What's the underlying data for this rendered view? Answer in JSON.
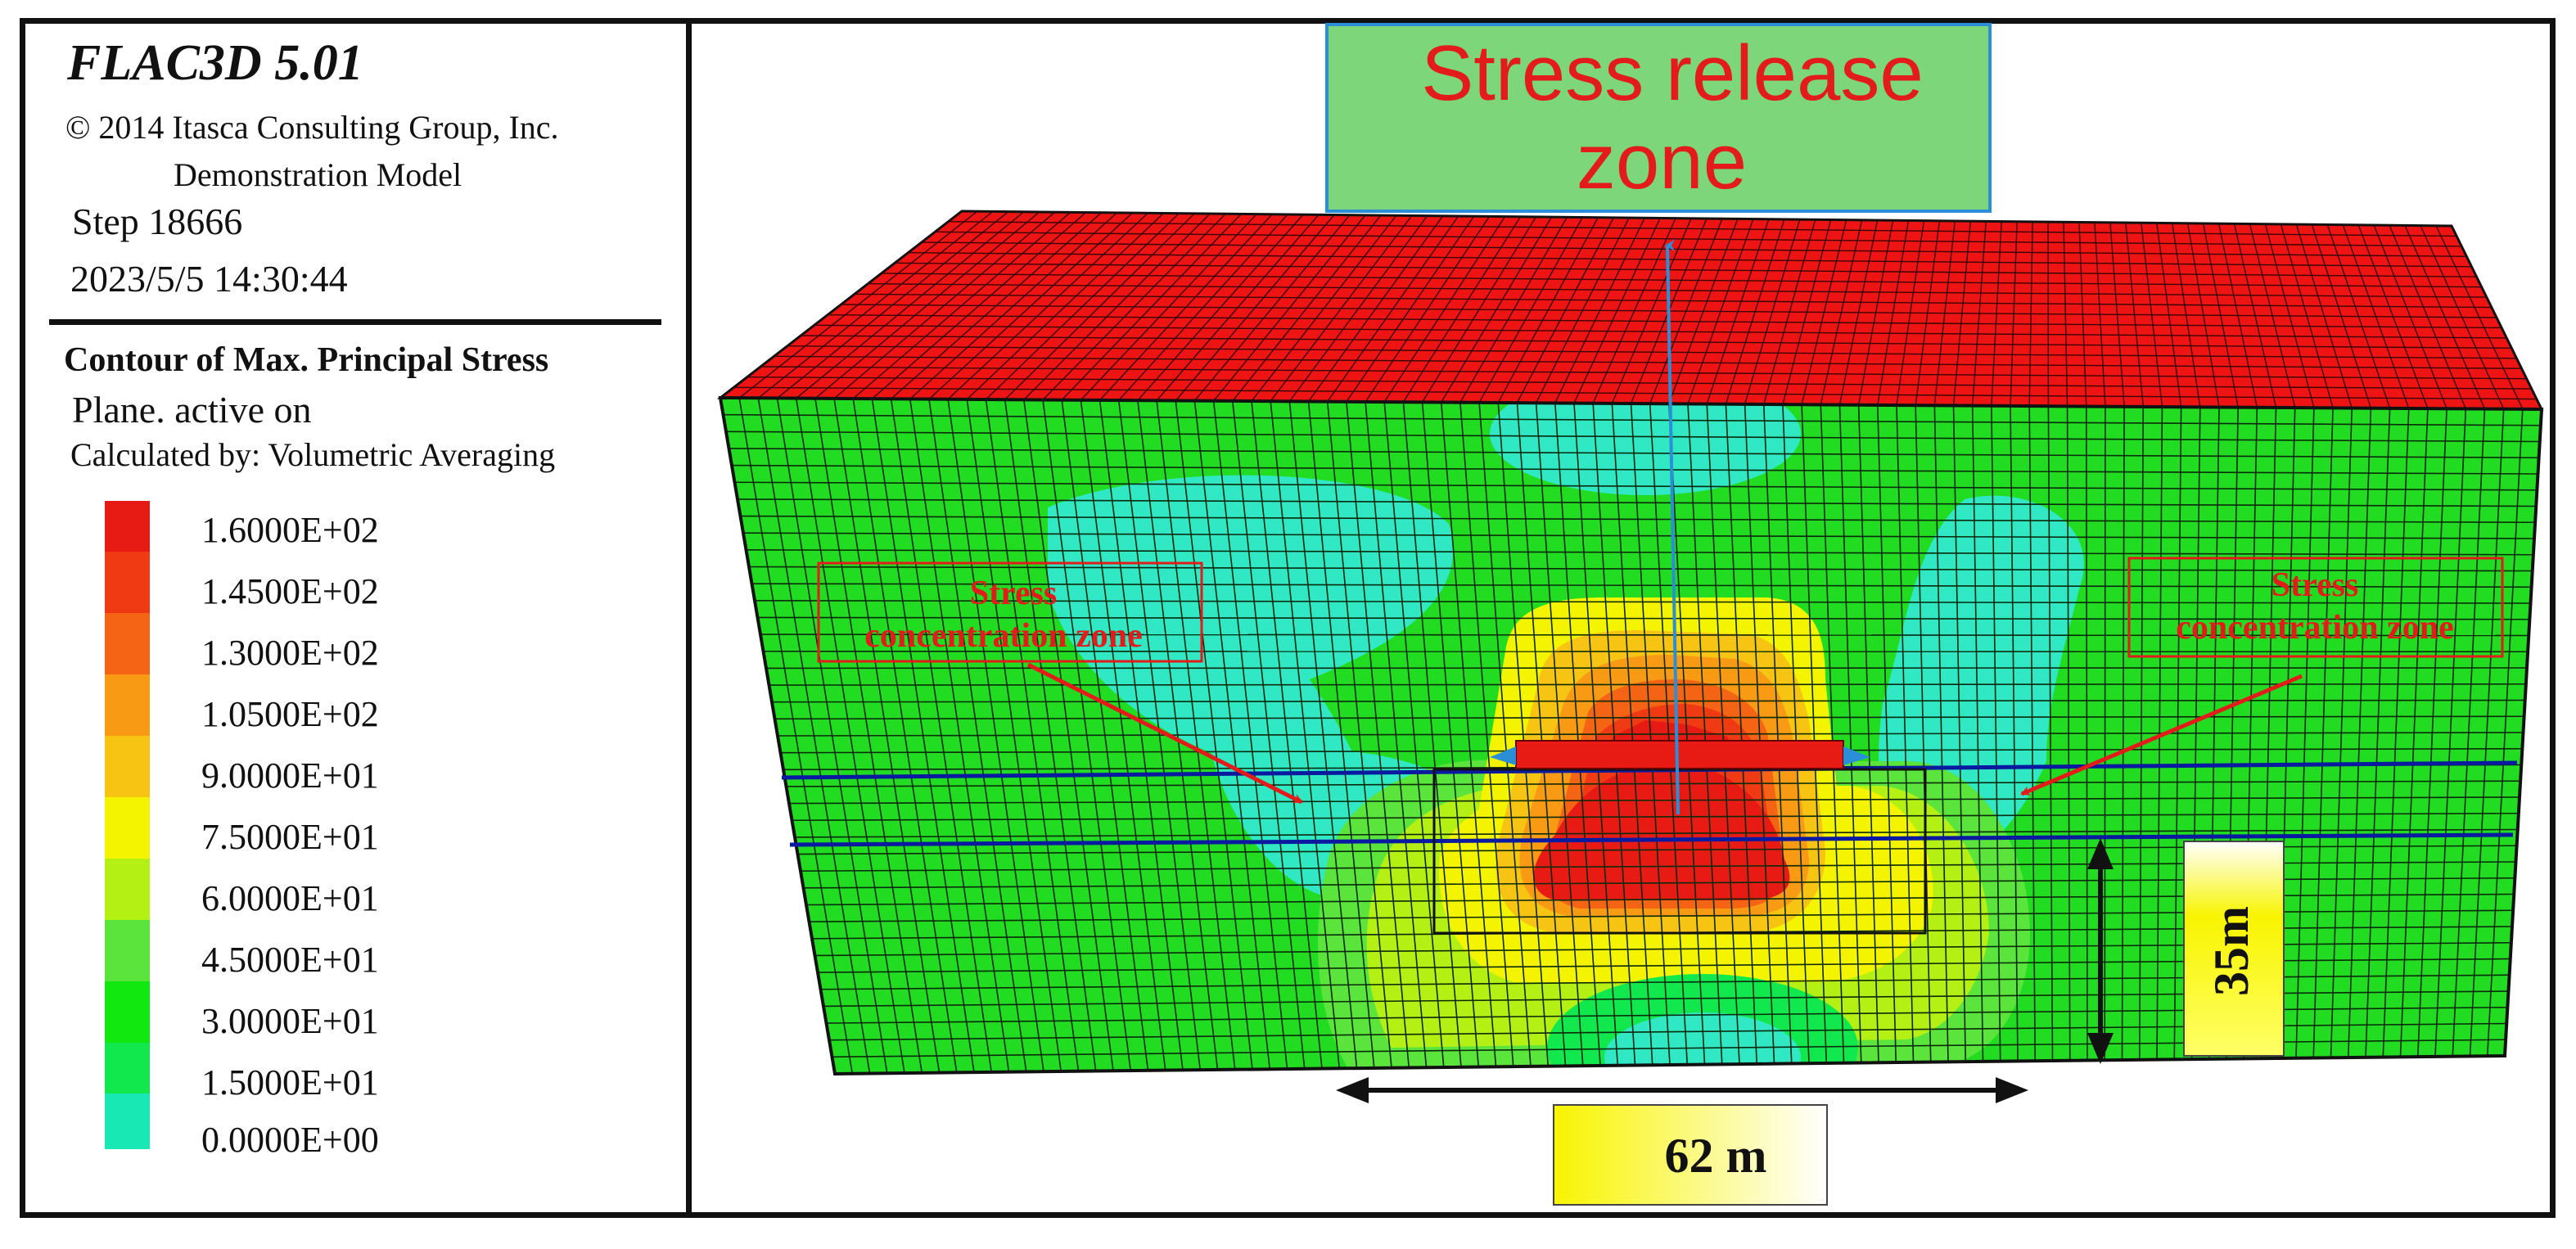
{
  "legend": {
    "title": "FLAC3D  5.01",
    "copyright": "© 2014 Itasca Consulting Group, Inc.",
    "model": "Demonstration Model",
    "step": "Step  18666",
    "datetime": "2023/5/5 14:30:44",
    "contour_title": "Contour of Max. Principal Stress",
    "plane": "Plane. active on",
    "calculated_by": "Calculated by: Volumetric Averaging",
    "scale_labels": [
      "1.6000E+02",
      "1.4500E+02",
      "1.3000E+02",
      "1.0500E+02",
      "9.0000E+01",
      "7.5000E+01",
      "6.0000E+01",
      "4.5000E+01",
      "3.0000E+01",
      "1.5000E+01",
      "0.0000E+00"
    ],
    "scale_colors": [
      "#e81a14",
      "#f03a14",
      "#f46414",
      "#f89a14",
      "#f8c414",
      "#f4f400",
      "#b4f014",
      "#5ae43c",
      "#10e810",
      "#10e84e",
      "#18e8b4"
    ]
  },
  "annotations": {
    "release_zone": [
      "Stress release",
      "zone"
    ],
    "concentration_left": [
      "Stress",
      "concentration zone"
    ],
    "concentration_right": [
      "Stress",
      "concentration zone"
    ],
    "height_dimension": "35m",
    "width_dimension": "62 m"
  },
  "colors": {
    "top_face": "#ee1414",
    "front_face": "#22dc22",
    "low_stress": "#30e8c4",
    "mesh": "#0b2a0b",
    "release_box": "#7ed67a",
    "label_red": "#e31b1b",
    "arrow_blue": "#2b8fd8",
    "layer_line": "#0a1aa0"
  }
}
